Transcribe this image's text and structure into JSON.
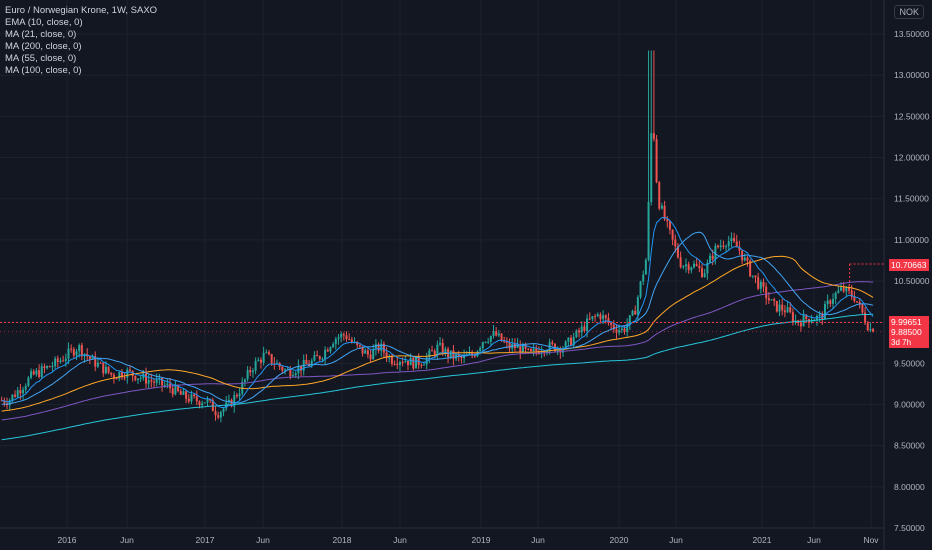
{
  "legend": {
    "title": "Euro / Norwegian Krone, 1W, SAXO",
    "indicators": [
      "EMA (10, close, 0)",
      "MA (21, close, 0)",
      "MA (200, close, 0)",
      "MA (55, close, 0)",
      "MA (100, close, 0)"
    ]
  },
  "currency": "NOK",
  "price_tags": {
    "high": "10.70663",
    "level": "9.99651",
    "last": "9.88500",
    "countdown": "3d 7h"
  },
  "colors": {
    "background": "#131722",
    "up": "#26a69a",
    "down": "#ef5350",
    "ema10": "#2196f3",
    "ma21": "#42a5f5",
    "ma55": "#ffa726",
    "ma100": "#7e57c2",
    "ma200": "#26c6da",
    "level_line": "#f23645"
  },
  "chart_data": {
    "type": "candlestick",
    "symbol": "EURNOK",
    "timeframe": "1W",
    "y_ticks": [
      "7.50000",
      "8.00000",
      "8.50000",
      "9.00000",
      "9.50000",
      "10.00000",
      "10.50000",
      "11.00000",
      "11.50000",
      "12.00000",
      "12.50000",
      "13.00000",
      "13.50000"
    ],
    "ylim": [
      7.5,
      13.5
    ],
    "x_ticks": [
      "2016",
      "Jun",
      "2017",
      "Jun",
      "2018",
      "Jun",
      "2019",
      "Jun",
      "2020",
      "Jun",
      "2021",
      "Jun",
      "Nov"
    ],
    "close_path": [
      [
        2015.58,
        9.05
      ],
      [
        2015.75,
        9.35
      ],
      [
        2015.92,
        9.5
      ],
      [
        2016.0,
        9.6
      ],
      [
        2016.08,
        9.7
      ],
      [
        2016.17,
        9.55
      ],
      [
        2016.25,
        9.45
      ],
      [
        2016.33,
        9.35
      ],
      [
        2016.42,
        9.4
      ],
      [
        2016.5,
        9.35
      ],
      [
        2016.58,
        9.3
      ],
      [
        2016.67,
        9.25
      ],
      [
        2016.75,
        9.2
      ],
      [
        2016.83,
        9.1
      ],
      [
        2016.92,
        9.05
      ],
      [
        2017.0,
        9.05
      ],
      [
        2017.08,
        8.9
      ],
      [
        2017.17,
        9.0
      ],
      [
        2017.25,
        9.2
      ],
      [
        2017.33,
        9.45
      ],
      [
        2017.42,
        9.6
      ],
      [
        2017.5,
        9.5
      ],
      [
        2017.58,
        9.4
      ],
      [
        2017.67,
        9.45
      ],
      [
        2017.75,
        9.5
      ],
      [
        2017.83,
        9.6
      ],
      [
        2017.92,
        9.8
      ],
      [
        2018.0,
        9.85
      ],
      [
        2018.08,
        9.7
      ],
      [
        2018.17,
        9.6
      ],
      [
        2018.25,
        9.7
      ],
      [
        2018.33,
        9.55
      ],
      [
        2018.42,
        9.55
      ],
      [
        2018.5,
        9.5
      ],
      [
        2018.58,
        9.55
      ],
      [
        2018.67,
        9.7
      ],
      [
        2018.75,
        9.6
      ],
      [
        2018.83,
        9.55
      ],
      [
        2018.92,
        9.6
      ],
      [
        2019.0,
        9.8
      ],
      [
        2019.08,
        9.85
      ],
      [
        2019.17,
        9.7
      ],
      [
        2019.25,
        9.7
      ],
      [
        2019.33,
        9.6
      ],
      [
        2019.42,
        9.7
      ],
      [
        2019.5,
        9.7
      ],
      [
        2019.58,
        9.7
      ],
      [
        2019.67,
        9.85
      ],
      [
        2019.75,
        10.0
      ],
      [
        2019.83,
        10.1
      ],
      [
        2019.92,
        9.95
      ],
      [
        2020.0,
        9.9
      ],
      [
        2020.08,
        10.1
      ],
      [
        2020.17,
        10.8
      ],
      [
        2020.21,
        12.6
      ],
      [
        2020.25,
        11.5
      ],
      [
        2020.33,
        11.1
      ],
      [
        2020.42,
        10.7
      ],
      [
        2020.5,
        10.7
      ],
      [
        2020.58,
        10.6
      ],
      [
        2020.67,
        10.9
      ],
      [
        2020.75,
        11.0
      ],
      [
        2020.83,
        10.9
      ],
      [
        2020.92,
        10.6
      ],
      [
        2021.0,
        10.4
      ],
      [
        2021.08,
        10.2
      ],
      [
        2021.17,
        10.15
      ],
      [
        2021.25,
        10.0
      ],
      [
        2021.33,
        10.05
      ],
      [
        2021.42,
        10.05
      ],
      [
        2021.5,
        10.3
      ],
      [
        2021.58,
        10.4
      ],
      [
        2021.67,
        10.3
      ],
      [
        2021.75,
        10.0
      ],
      [
        2021.79,
        9.885
      ]
    ],
    "annotations": {
      "horizontal_line": 9.99651,
      "dotted_high": 10.70663,
      "last_price": 9.885
    }
  }
}
